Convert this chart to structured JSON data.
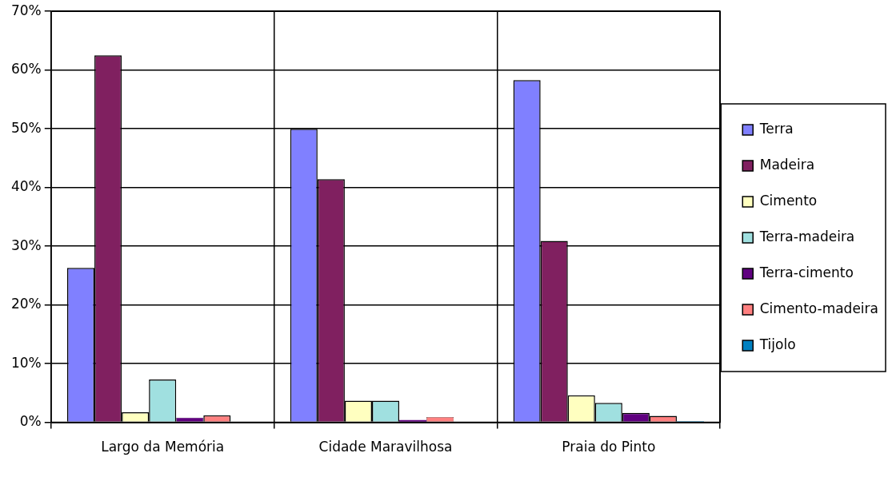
{
  "chart_data": {
    "type": "bar",
    "categories": [
      "Largo da Memória",
      "Cidade Maravilhosa",
      "Praia do Pinto"
    ],
    "series": [
      {
        "name": "Terra",
        "color": "#8080ff",
        "values": [
          26.3,
          50.0,
          58.3
        ]
      },
      {
        "name": "Madeira",
        "color": "#802060",
        "values": [
          62.5,
          41.4,
          30.9
        ]
      },
      {
        "name": "Cimento",
        "color": "#ffffc0",
        "values": [
          1.7,
          3.7,
          4.6
        ]
      },
      {
        "name": "Terra-madeira",
        "color": "#a0e0e0",
        "values": [
          7.3,
          3.7,
          3.3
        ]
      },
      {
        "name": "Terra-cimento",
        "color": "#600080",
        "values": [
          0.8,
          0.4,
          1.6
        ]
      },
      {
        "name": "Cimento-madeira",
        "color": "#ff8080",
        "values": [
          1.2,
          0.9,
          1.1
        ]
      },
      {
        "name": "Tijolo",
        "color": "#0080c0",
        "values": [
          0,
          0,
          0.2
        ]
      }
    ],
    "ylim": [
      0,
      70
    ],
    "yticks": [
      {
        "value": 0,
        "label": "0%"
      },
      {
        "value": 10,
        "label": "10%"
      },
      {
        "value": 20,
        "label": "20%"
      },
      {
        "value": 30,
        "label": "30%"
      },
      {
        "value": 40,
        "label": "40%"
      },
      {
        "value": 50,
        "label": "50%"
      },
      {
        "value": 60,
        "label": "60%"
      },
      {
        "value": 70,
        "label": "70%"
      }
    ],
    "grid": true,
    "legend": "right"
  }
}
